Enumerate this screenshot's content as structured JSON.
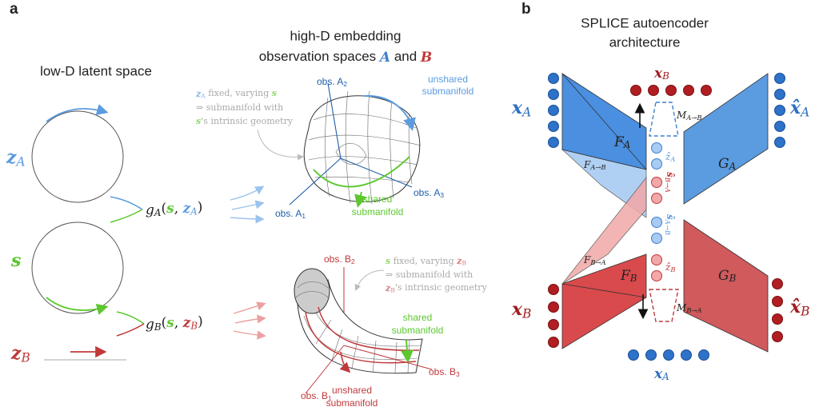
{
  "panel_a": {
    "letter": "a",
    "latent_title": "low-D latent space",
    "embedding_title_1": "high-D embedding",
    "embedding_title_2": [
      {
        "t": "observation spaces "
      },
      {
        "t": "A",
        "m": 1,
        "c": "#3d7fd0"
      },
      {
        "t": " and "
      },
      {
        "t": "B",
        "m": 1,
        "c": "#c0393b"
      }
    ],
    "z_A": [
      {
        "t": "z",
        "m": 1
      },
      {
        "t": "A",
        "sub": 1,
        "i": 1
      }
    ],
    "s": [
      {
        "t": "s",
        "m": 1
      }
    ],
    "z_B": [
      {
        "t": "z",
        "m": 1
      },
      {
        "t": "B",
        "sub": 1,
        "i": 1
      }
    ],
    "g_A": [
      {
        "t": "g",
        "i": 1
      },
      {
        "t": "A",
        "sub": 1,
        "i": 1
      },
      {
        "t": "("
      },
      {
        "t": "s",
        "m": 1,
        "c": "#5cc82e"
      },
      {
        "t": ", "
      },
      {
        "t": "z",
        "m": 1,
        "c": "#5b9be0"
      },
      {
        "t": "A",
        "sub": 1,
        "i": 1,
        "c": "#5b9be0"
      },
      {
        "t": ")"
      }
    ],
    "g_B": [
      {
        "t": "g",
        "i": 1
      },
      {
        "t": "B",
        "sub": 1,
        "i": 1
      },
      {
        "t": "("
      },
      {
        "t": "s",
        "m": 1,
        "c": "#5cc82e"
      },
      {
        "t": ", "
      },
      {
        "t": "z",
        "m": 1,
        "c": "#c0393b"
      },
      {
        "t": "B",
        "sub": 1,
        "i": 1,
        "c": "#c0393b"
      },
      {
        "t": ")"
      }
    ],
    "note_A": [
      [
        {
          "t": "z",
          "m": 1,
          "c": "#8fb8e8"
        },
        {
          "t": "A",
          "sub": 1,
          "c": "#8fb8e8"
        },
        {
          "t": " fixed, varying "
        },
        {
          "t": "s",
          "m": 1,
          "c": "#8fd86a"
        }
      ],
      [
        {
          "t": "⇒ submanifold with"
        }
      ],
      [
        {
          "t": "s",
          "m": 1,
          "c": "#8fd86a"
        },
        {
          "t": "'s intrinsic geometry"
        }
      ]
    ],
    "note_B": [
      [
        {
          "t": "s",
          "m": 1,
          "c": "#8fd86a"
        },
        {
          "t": " fixed, varying "
        },
        {
          "t": "z",
          "m": 1,
          "c": "#d98080"
        },
        {
          "t": "B",
          "sub": 1,
          "c": "#d98080"
        }
      ],
      [
        {
          "t": "⇒ submanifold with"
        }
      ],
      [
        {
          "t": "z",
          "m": 1,
          "c": "#d98080"
        },
        {
          "t": "B",
          "sub": 1,
          "c": "#d98080"
        },
        {
          "t": "'s intrinsic geometry"
        }
      ]
    ],
    "obs_A2": [
      {
        "t": "obs. A"
      },
      {
        "t": "2",
        "sub": 1
      }
    ],
    "obs_A1": [
      {
        "t": "obs. A"
      },
      {
        "t": "1",
        "sub": 1
      }
    ],
    "obs_A3": [
      {
        "t": "obs. A"
      },
      {
        "t": "3",
        "sub": 1
      }
    ],
    "unshared_A": [
      "unshared",
      "submanifold"
    ],
    "shared_A": [
      "shared",
      "submanifold"
    ],
    "obs_B2": [
      {
        "t": "obs. B"
      },
      {
        "t": "2",
        "sub": 1
      }
    ],
    "obs_B1": [
      {
        "t": "obs. B"
      },
      {
        "t": "1",
        "sub": 1
      }
    ],
    "obs_B3": [
      {
        "t": "obs. B"
      },
      {
        "t": "3",
        "sub": 1
      }
    ],
    "shared_B": [
      "shared",
      "submanifold"
    ],
    "unshared_B": [
      "unshared",
      "submanifold"
    ]
  },
  "panel_b": {
    "letter": "b",
    "title": [
      "SPLICE autoencoder",
      "architecture"
    ],
    "x_A_in": [
      {
        "t": "x",
        "m": 1
      },
      {
        "t": "A",
        "sub": 1,
        "i": 1
      }
    ],
    "x_A_out": [
      {
        "t": "x̂",
        "m": 1
      },
      {
        "t": "A",
        "sub": 1,
        "i": 1
      }
    ],
    "x_B_top": [
      {
        "t": "x",
        "m": 1
      },
      {
        "t": "B",
        "sub": 1,
        "i": 1
      }
    ],
    "x_B_in": [
      {
        "t": "x",
        "m": 1
      },
      {
        "t": "B",
        "sub": 1,
        "i": 1
      }
    ],
    "x_B_out": [
      {
        "t": "x̂",
        "m": 1
      },
      {
        "t": "B",
        "sub": 1,
        "i": 1
      }
    ],
    "x_A_bottom": [
      {
        "t": "x",
        "m": 1
      },
      {
        "t": "A",
        "sub": 1,
        "i": 1
      }
    ],
    "F_A": [
      {
        "t": "F",
        "i": 1
      },
      {
        "t": "A",
        "sub": 1,
        "i": 1
      }
    ],
    "G_A": [
      {
        "t": "G",
        "i": 1
      },
      {
        "t": "A",
        "sub": 1,
        "i": 1
      }
    ],
    "F_B": [
      {
        "t": "F",
        "i": 1
      },
      {
        "t": "B",
        "sub": 1,
        "i": 1
      }
    ],
    "G_B": [
      {
        "t": "G",
        "i": 1
      },
      {
        "t": "B",
        "sub": 1,
        "i": 1
      }
    ],
    "F_AB": [
      {
        "t": "F",
        "i": 1
      },
      {
        "t": "A→B",
        "sub": 1,
        "i": 1
      }
    ],
    "F_BA": [
      {
        "t": "F",
        "i": 1
      },
      {
        "t": "B→A",
        "sub": 1,
        "i": 1
      }
    ],
    "M_AB": [
      {
        "t": "M",
        "i": 1
      },
      {
        "t": "A→B",
        "sub": 1,
        "i": 1
      }
    ],
    "M_BA": [
      {
        "t": "M",
        "i": 1
      },
      {
        "t": "B→A",
        "sub": 1,
        "i": 1
      }
    ],
    "z_A_hat": [
      {
        "t": "ẑ",
        "i": 1
      },
      {
        "t": "A",
        "sub": 1,
        "i": 1
      }
    ],
    "s_BA_hat": [
      {
        "t": "ŝ",
        "m": 1
      },
      {
        "t": "B→A",
        "sub": 1,
        "i": 1
      }
    ],
    "s_AB_hat": [
      {
        "t": "ŝ",
        "m": 1
      },
      {
        "t": "A→B",
        "sub": 1,
        "i": 1
      }
    ],
    "z_B_hat": [
      {
        "t": "ẑ",
        "i": 1
      },
      {
        "t": "B",
        "sub": 1,
        "i": 1
      }
    ]
  }
}
